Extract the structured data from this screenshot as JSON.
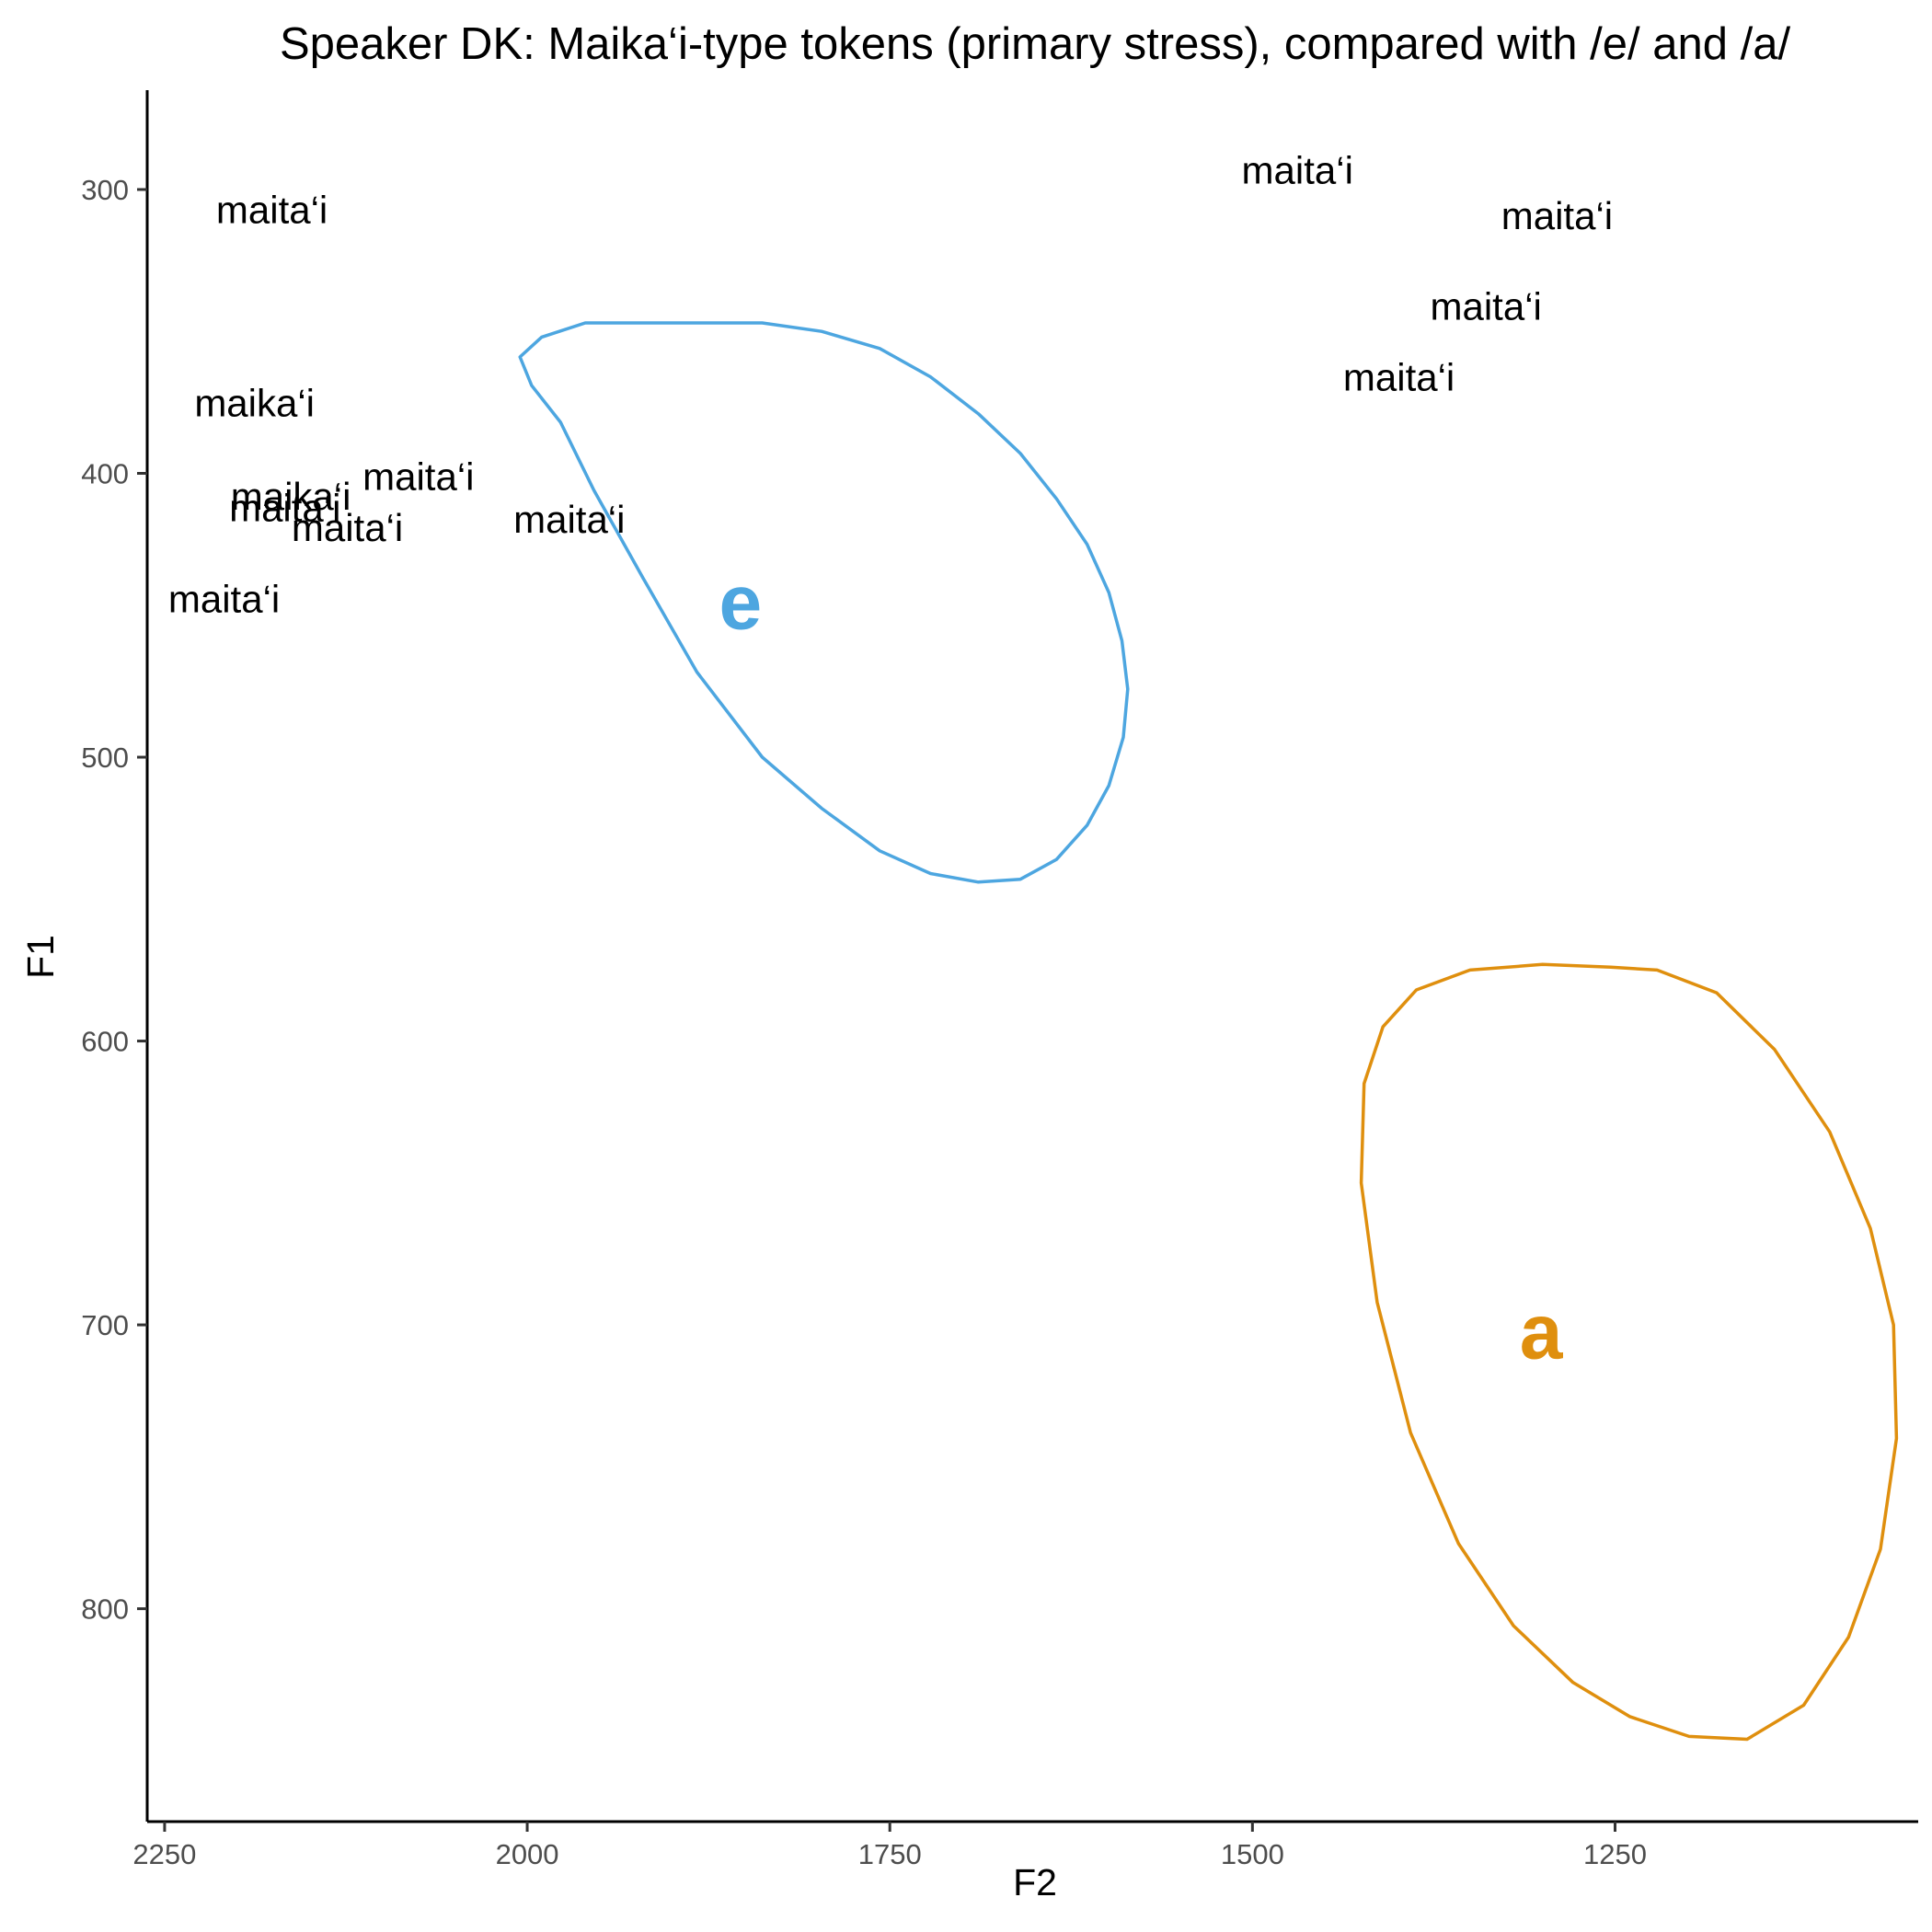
{
  "chart_data": {
    "type": "scatter",
    "title": "Speaker DK: Maika‘i-type tokens (primary stress), compared with /e/ and /a/",
    "xlabel": "F2",
    "ylabel": "F1",
    "xlim": [
      2262,
      1041
    ],
    "ylim": [
      265,
      875
    ],
    "x_reversed": true,
    "y_reversed": true,
    "xticks": [
      2250,
      2000,
      1750,
      1500,
      1250
    ],
    "yticks": [
      300,
      400,
      500,
      600,
      700,
      800
    ],
    "grid": false,
    "legend": "none",
    "tokens": [
      {
        "label": "maita‘i",
        "x": 2176,
        "y": 307
      },
      {
        "label": "maika‘i",
        "x": 2188,
        "y": 375
      },
      {
        "label": "maita‘i",
        "x": 2075,
        "y": 401
      },
      {
        "label": "maika‘i",
        "x": 2163,
        "y": 408
      },
      {
        "label": "maita‘i",
        "x": 2167,
        "y": 412
      },
      {
        "label": "maita‘i",
        "x": 2124,
        "y": 419
      },
      {
        "label": "maita‘i",
        "x": 1971,
        "y": 416
      },
      {
        "label": "maita‘i",
        "x": 2209,
        "y": 444
      },
      {
        "label": "maita‘i",
        "x": 1469,
        "y": 293
      },
      {
        "label": "maita‘i",
        "x": 1290,
        "y": 309
      },
      {
        "label": "maita‘i",
        "x": 1339,
        "y": 341
      },
      {
        "label": "maita‘i",
        "x": 1399,
        "y": 366
      }
    ],
    "vowels": [
      {
        "label": "e",
        "color": "#4da6e0",
        "center": [
          1853,
          445
        ]
      },
      {
        "label": "a",
        "color": "#df8f0e",
        "center": [
          1301,
          702
        ]
      }
    ],
    "ellipses": [
      {
        "vowel": "e",
        "color": "#4da6e0",
        "outline": [
          [
            1883,
            347
          ],
          [
            1838,
            347
          ],
          [
            1797,
            350
          ],
          [
            1757,
            356
          ],
          [
            1722,
            366
          ],
          [
            1689,
            379
          ],
          [
            1660,
            393
          ],
          [
            1635,
            409
          ],
          [
            1614,
            425
          ],
          [
            1599,
            442
          ],
          [
            1590,
            459
          ],
          [
            1586,
            476
          ],
          [
            1589,
            493
          ],
          [
            1599,
            510
          ],
          [
            1614,
            524
          ],
          [
            1635,
            536
          ],
          [
            1660,
            543
          ],
          [
            1689,
            544
          ],
          [
            1722,
            541
          ],
          [
            1757,
            533
          ],
          [
            1797,
            518
          ],
          [
            1838,
            500
          ],
          [
            1883,
            470
          ],
          [
            1920,
            437
          ],
          [
            1954,
            406
          ],
          [
            1977,
            382
          ],
          [
            1997,
            369
          ],
          [
            2005,
            359
          ],
          [
            1990,
            352
          ],
          [
            1960,
            347
          ],
          [
            1923,
            347
          ]
        ]
      },
      {
        "vowel": "a",
        "color": "#df8f0e",
        "outline": [
          [
            1253,
            574
          ],
          [
            1221,
            575
          ],
          [
            1180,
            583
          ],
          [
            1140,
            603
          ],
          [
            1102,
            632
          ],
          [
            1074,
            666
          ],
          [
            1058,
            700
          ],
          [
            1056,
            740
          ],
          [
            1067,
            779
          ],
          [
            1089,
            810
          ],
          [
            1120,
            834
          ],
          [
            1159,
            846
          ],
          [
            1199,
            845
          ],
          [
            1240,
            838
          ],
          [
            1279,
            826
          ],
          [
            1320,
            806
          ],
          [
            1358,
            777
          ],
          [
            1391,
            738
          ],
          [
            1414,
            692
          ],
          [
            1425,
            650
          ],
          [
            1423,
            615
          ],
          [
            1410,
            595
          ],
          [
            1387,
            582
          ],
          [
            1350,
            575
          ],
          [
            1300,
            573
          ]
        ]
      }
    ]
  }
}
